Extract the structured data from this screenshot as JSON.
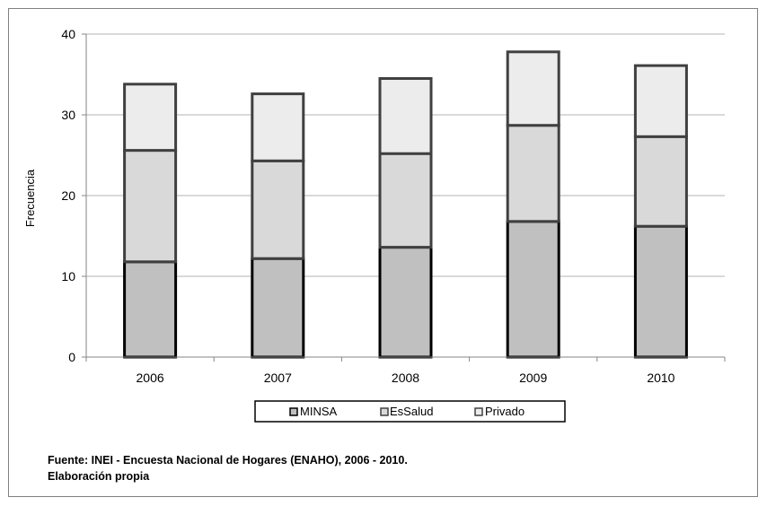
{
  "chart_data": {
    "type": "bar",
    "stacked": true,
    "categories": [
      "2006",
      "2007",
      "2008",
      "2009",
      "2010"
    ],
    "series": [
      {
        "name": "MINSA",
        "values": [
          11.8,
          12.2,
          13.6,
          16.8,
          16.2
        ],
        "color": "#c0c0c0",
        "edge": "#000000"
      },
      {
        "name": "EsSalud",
        "values": [
          13.8,
          12.1,
          11.6,
          11.9,
          11.1
        ],
        "color": "#d9d9d9",
        "edge": "#404040"
      },
      {
        "name": "Privado",
        "values": [
          8.2,
          8.3,
          9.3,
          9.1,
          8.8
        ],
        "color": "#ececec",
        "edge": "#404040"
      }
    ],
    "ylabel": "Frecuencia",
    "ylim": [
      0,
      40
    ],
    "yticks": [
      "0",
      "10",
      "20",
      "30",
      "40"
    ],
    "grid": true,
    "legend_position": "bottom"
  },
  "legend": [
    "MINSA",
    "EsSalud",
    "Privado"
  ],
  "source": {
    "line1": "Fuente: INEI - Encuesta Nacional de Hogares (ENAHO), 2006 - 2010.",
    "line2": "Elaboración  propia"
  }
}
